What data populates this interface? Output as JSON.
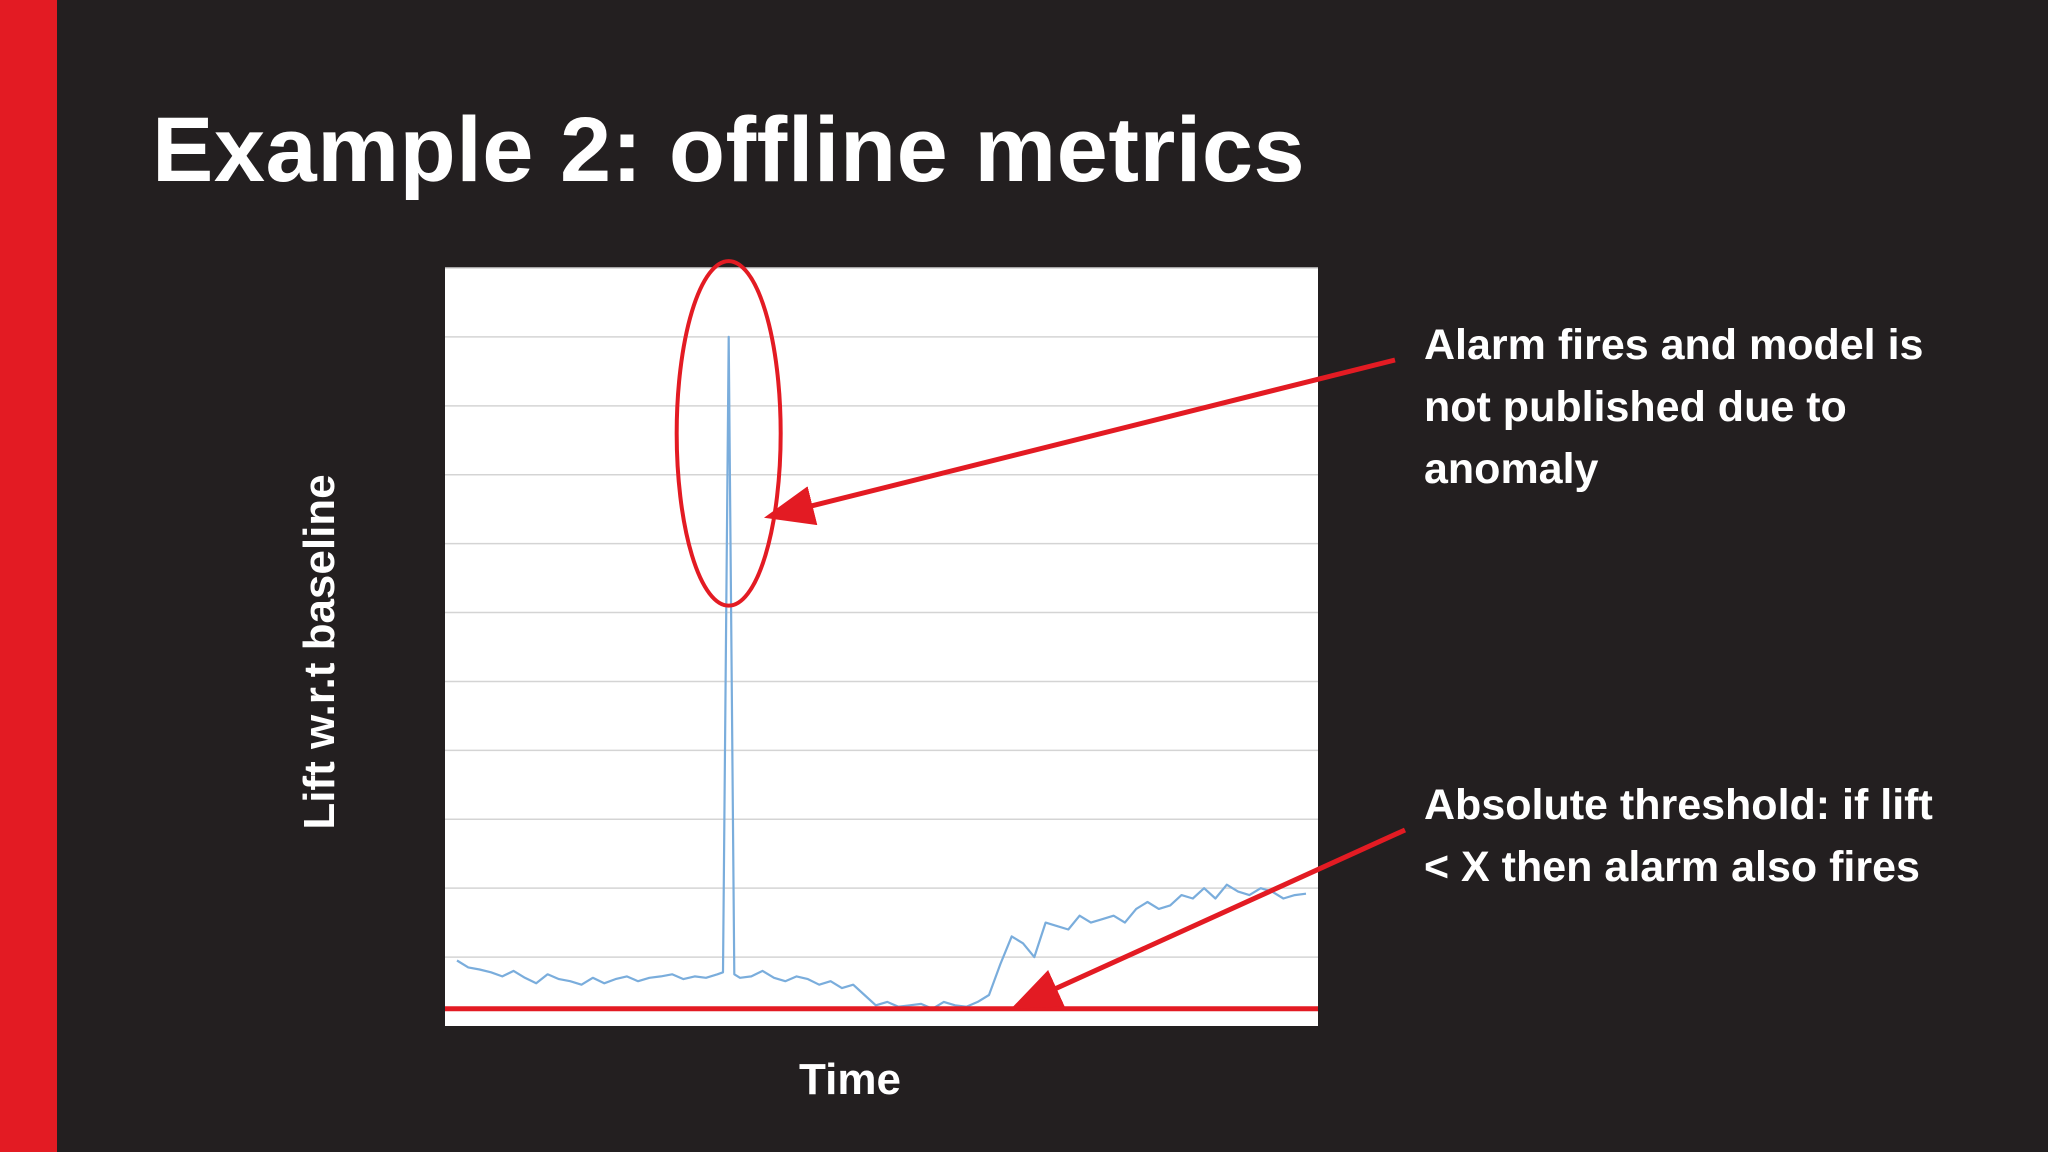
{
  "slide": {
    "title": "Example 2: offline metrics"
  },
  "annotations": {
    "spike_note": [
      "Alarm fires and model is",
      "not published due to",
      "anomaly"
    ],
    "threshold_note": [
      "Absolute threshold: if lift",
      "< X then alarm also fires"
    ]
  },
  "chart_data": {
    "type": "line",
    "title": "",
    "xlabel": "Time",
    "ylabel": "Lift w.r.t baseline",
    "ylim": [
      0,
      11
    ],
    "xlim": [
      0,
      150
    ],
    "grid": true,
    "ticks_shown": false,
    "series": [
      {
        "color": "#7aaddc",
        "x": [
          0,
          2,
          4,
          6,
          8,
          10,
          12,
          14,
          16,
          18,
          20,
          22,
          24,
          26,
          28,
          30,
          32,
          34,
          36,
          38,
          40,
          42,
          44,
          46,
          47,
          48,
          49,
          50,
          52,
          54,
          56,
          58,
          60,
          62,
          64,
          66,
          68,
          70,
          72,
          74,
          76,
          78,
          80,
          82,
          84,
          86,
          88,
          90,
          92,
          94,
          96,
          98,
          100,
          102,
          104,
          106,
          108,
          110,
          112,
          114,
          116,
          118,
          120,
          122,
          124,
          126,
          128,
          130,
          132,
          134,
          136,
          138,
          140,
          142,
          144,
          146,
          148,
          150
        ],
        "y": [
          0.95,
          0.85,
          0.82,
          0.78,
          0.72,
          0.8,
          0.7,
          0.62,
          0.75,
          0.68,
          0.65,
          0.6,
          0.7,
          0.62,
          0.68,
          0.72,
          0.65,
          0.7,
          0.72,
          0.75,
          0.68,
          0.72,
          0.7,
          0.75,
          0.78,
          10.0,
          0.75,
          0.7,
          0.72,
          0.8,
          0.7,
          0.65,
          0.72,
          0.68,
          0.6,
          0.65,
          0.55,
          0.6,
          0.45,
          0.3,
          0.35,
          0.28,
          0.3,
          0.32,
          0.25,
          0.35,
          0.3,
          0.28,
          0.35,
          0.45,
          0.9,
          1.3,
          1.2,
          1.0,
          1.5,
          1.45,
          1.4,
          1.6,
          1.5,
          1.55,
          1.6,
          1.5,
          1.7,
          1.8,
          1.7,
          1.75,
          1.9,
          1.85,
          2.0,
          1.85,
          2.05,
          1.95,
          1.9,
          2.0,
          1.95,
          1.85,
          1.9,
          1.92
        ]
      }
    ],
    "threshold": {
      "y": 0.25,
      "color": "#e31b23"
    },
    "highlight": {
      "x": 48,
      "y_from": 6.1,
      "y_to": 11.1,
      "color": "#e31b23"
    }
  }
}
